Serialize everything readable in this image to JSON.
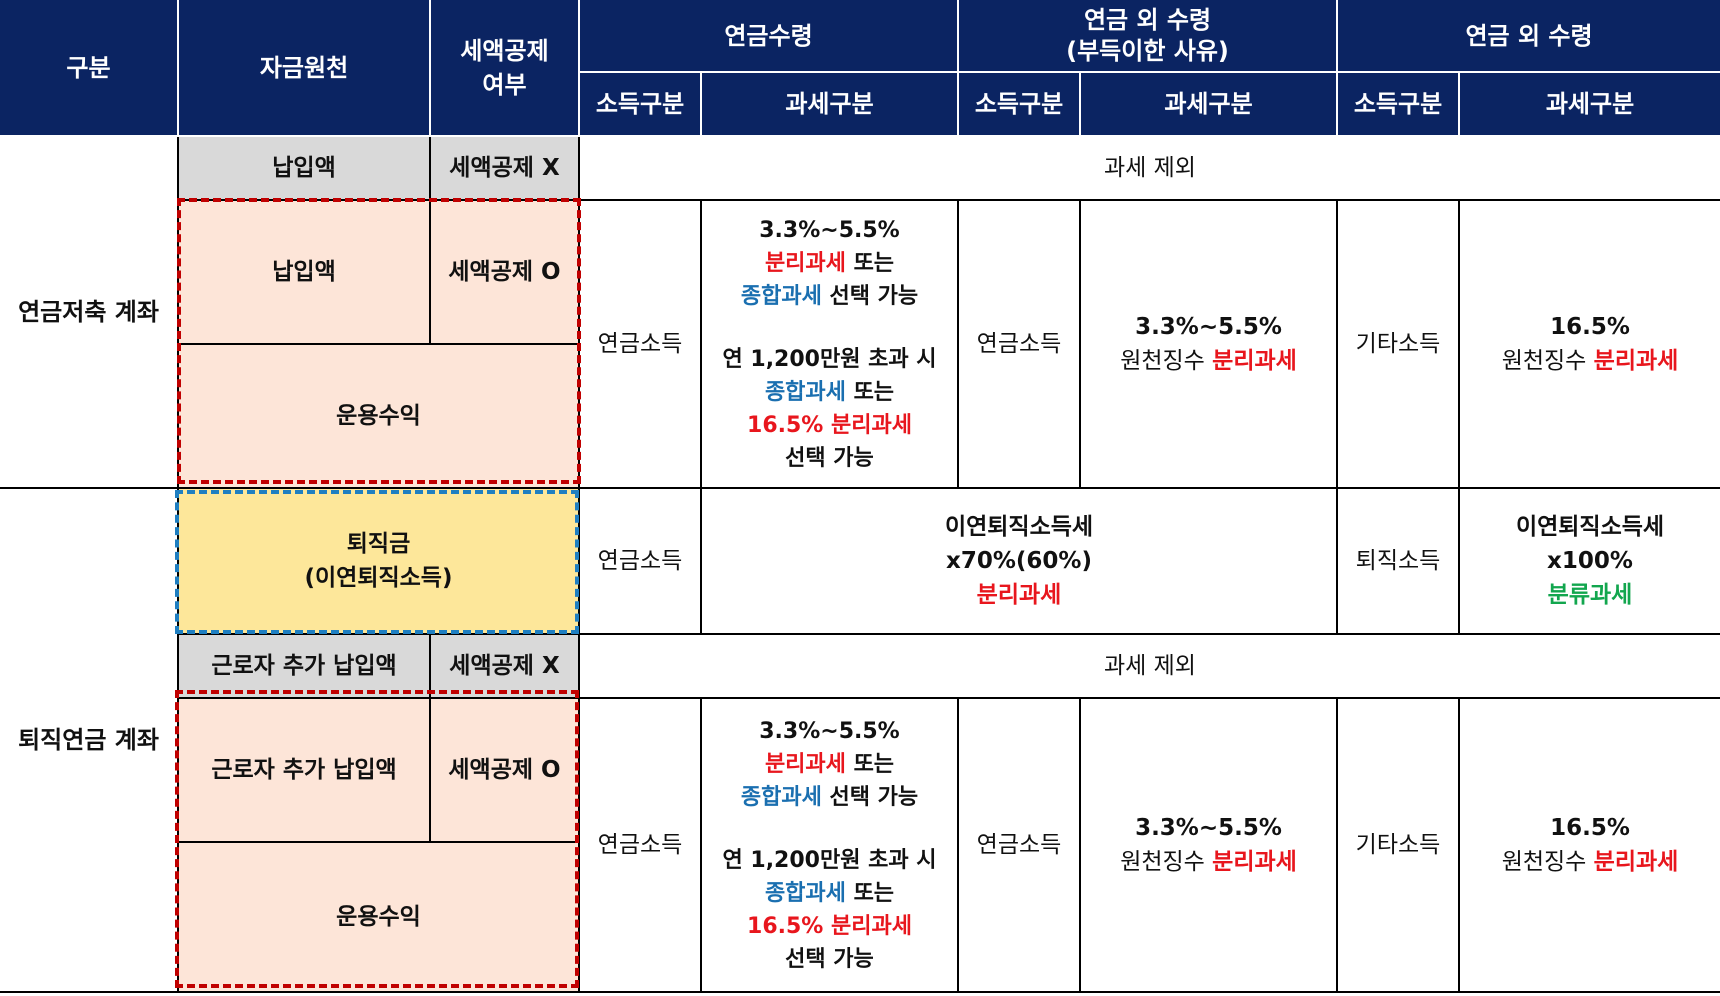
{
  "header": {
    "category": "구분",
    "funding_source": "자금원천",
    "tax_credit": "세액공제\n여부",
    "pension_receipt": "연금수령",
    "non_pension_unavoidable": "연금 외 수령\n(부득이한 사유)",
    "non_pension": "연금 외 수령",
    "income_type": "소득구분",
    "tax_type": "과세구분"
  },
  "savings": {
    "label": "연금저축 계좌",
    "row1": {
      "source": "납입액",
      "credit": "세액공제 X",
      "tax": "과세 제외"
    },
    "row2": {
      "source": "납입액",
      "credit": "세액공제 O",
      "earnings": "운용수익"
    },
    "pension": {
      "income": "연금소득",
      "tax": {
        "rate": "3.3%~5.5%",
        "sep": "분리과세",
        "or1": " 또는",
        "comp": "종합과세",
        "choose1": " 선택 가능",
        "limit": "연 1,200만원 초과 시",
        "comp2": "종합과세",
        "or2": " 또는",
        "sep2": "16.5% 분리과세",
        "choose2": "선택 가능"
      }
    },
    "unavoidable": {
      "income": "연금소득",
      "rate": "3.3%~5.5%",
      "withhold": "원천징수 ",
      "sep": "분리과세"
    },
    "other": {
      "income": "기타소득",
      "rate": "16.5%",
      "withhold": "원천징수 ",
      "sep": "분리과세"
    }
  },
  "retirement": {
    "label": "퇴직연금 계좌",
    "severance": {
      "source": "퇴직금\n(이연퇴직소득)",
      "pension_income": "연금소득",
      "pension_tax_title": "이연퇴직소득세",
      "pension_tax_rate": "x70%(60%)",
      "pension_tax_type": "분리과세",
      "other_income": "퇴직소득",
      "other_tax_title": "이연퇴직소득세",
      "other_tax_rate": "x100%",
      "other_tax_type": "분류과세"
    },
    "row1": {
      "source": "근로자 추가 납입액",
      "credit": "세액공제 X",
      "tax": "과세 제외"
    },
    "row2": {
      "source": "근로자 추가 납입액",
      "credit": "세액공제 O",
      "earnings": "운용수익"
    },
    "pension": {
      "income": "연금소득",
      "tax": {
        "rate": "3.3%~5.5%",
        "sep": "분리과세",
        "or1": " 또는",
        "comp": "종합과세",
        "choose1": " 선택 가능",
        "limit": "연 1,200만원 초과 시",
        "comp2": "종합과세",
        "or2": " 또는",
        "sep2": "16.5% 분리과세",
        "choose2": "선택 가능"
      }
    },
    "unavoidable": {
      "income": "연금소득",
      "rate": "3.3%~5.5%",
      "withhold": "원천징수 ",
      "sep": "분리과세"
    },
    "other": {
      "income": "기타소득",
      "rate": "16.5%",
      "withhold": "원천징수 ",
      "sep": "분리과세"
    }
  },
  "colors": {
    "header_bg": "#0b2462",
    "red": "#e8161d",
    "blue": "#1a6fb0",
    "green": "#12a64e",
    "peach": "#fde5d8",
    "yellow": "#fde79a",
    "gray": "#d9d9d9"
  }
}
